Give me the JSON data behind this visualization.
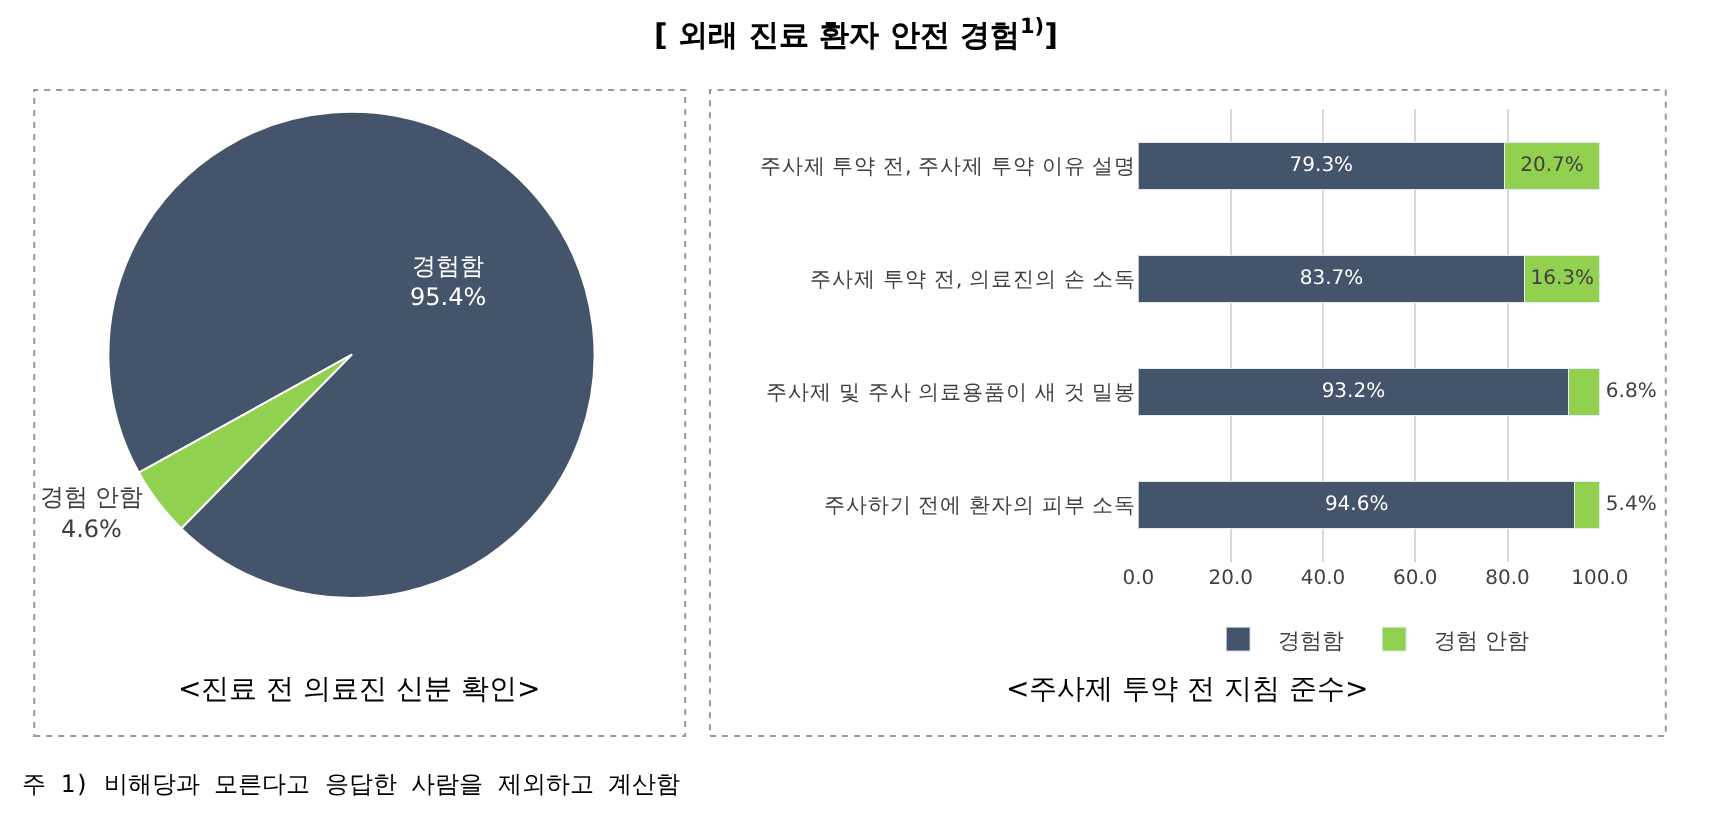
{
  "chart_data": [
    {
      "type": "pie",
      "title": "[ 외래 진료 환자 안전 경험$^{1)}$]",
      "categories": [
        "경험함",
        "경험 안함"
      ],
      "values": [
        95.4,
        4.6
      ],
      "colors": [
        "#44546a",
        "#92d050"
      ],
      "value_labels": [
        "95.4%",
        "4.6%"
      ],
      "annotations": [
        "<진료 전 의료진 신분 확인>",
        "주 1) 비해당과 모른다고 응답한 사람을 제외하고 계산함"
      ]
    },
    {
      "type": "bar",
      "orientation": "horizontal",
      "stacked": true,
      "categories": [
        "주사제 투약 전, 주사제 투약 이유 설명",
        "주사제 투약 전, 의료진의 손 소독",
        "주사제 및 주사 의료용품이 새 것 밀봉",
        "주사하기 전에 환자의 피부 소독"
      ],
      "series": [
        {
          "name": "경험함",
          "color": "#44546a",
          "values": [
            79.3,
            83.7,
            93.2,
            94.6
          ],
          "value_labels": [
            "79.3%",
            "83.7%",
            "93.2%",
            "94.6%"
          ]
        },
        {
          "name": "경험 안함",
          "color": "#92d050",
          "values": [
            20.7,
            16.3,
            6.8,
            5.4
          ],
          "value_labels": [
            "20.7%",
            "16.3%",
            "6.8%",
            "5.4%"
          ]
        }
      ],
      "xlim": [
        0,
        100
      ],
      "xticks": [
        {
          "value": 0,
          "label": "0.0"
        },
        {
          "value": 20,
          "label": "20.0"
        },
        {
          "value": 40,
          "label": "40.0"
        },
        {
          "value": 60,
          "label": "60.0"
        },
        {
          "value": 80,
          "label": "80.0"
        },
        {
          "value": 100,
          "label": "100.0"
        }
      ],
      "grid": "x",
      "legend": "bottom",
      "annotations": [
        "<주사제 투약 전 지침 준수>"
      ]
    }
  ]
}
